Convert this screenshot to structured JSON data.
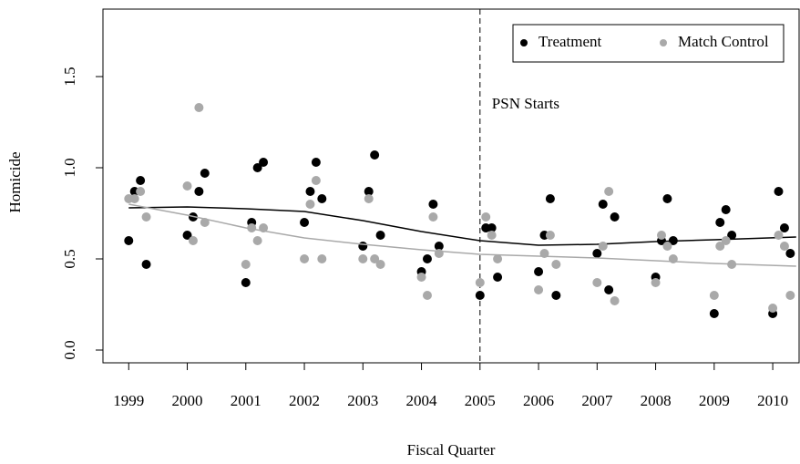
{
  "chart_data": {
    "type": "scatter",
    "x_label": "Fiscal Quarter",
    "y_label": "Homicide",
    "x": [
      1999,
      1999.1,
      1999.2,
      1999.3,
      2000,
      2000.1,
      2000.2,
      2000.3,
      2001,
      2001.1,
      2001.2,
      2001.3,
      2002,
      2002.1,
      2002.2,
      2002.3,
      2003,
      2003.1,
      2003.2,
      2003.3,
      2004,
      2004.1,
      2004.2,
      2004.3,
      2005,
      2005.1,
      2005.2,
      2005.3,
      2006,
      2006.1,
      2006.2,
      2006.3,
      2007,
      2007.1,
      2007.2,
      2007.3,
      2008,
      2008.1,
      2008.2,
      2008.3,
      2009,
      2009.1,
      2009.2,
      2009.3,
      2010,
      2010.1,
      2010.2,
      2010.3
    ],
    "series": [
      {
        "name": "Treatment",
        "color": "#000000",
        "values": [
          0.6,
          0.87,
          0.93,
          0.47,
          0.63,
          0.73,
          0.87,
          0.97,
          0.37,
          0.7,
          1.0,
          1.03,
          0.7,
          0.87,
          1.03,
          0.83,
          0.57,
          0.87,
          1.07,
          0.63,
          0.43,
          0.5,
          0.8,
          0.57,
          0.3,
          0.67,
          0.67,
          0.4,
          0.43,
          0.63,
          0.83,
          0.3,
          0.53,
          0.8,
          0.33,
          0.73,
          0.4,
          0.6,
          0.83,
          0.6,
          0.2,
          0.7,
          0.77,
          0.63,
          0.2,
          0.87,
          0.67,
          0.53
        ],
        "trend": [
          0.78,
          0.785,
          0.775,
          0.76,
          0.71,
          0.65,
          0.6,
          0.575,
          0.58,
          0.595,
          0.605,
          0.62
        ]
      },
      {
        "name": "Match Control",
        "color": "#a9a9a9",
        "values": [
          0.83,
          0.83,
          0.87,
          0.73,
          0.9,
          0.6,
          1.33,
          0.7,
          0.47,
          0.67,
          0.6,
          0.67,
          0.5,
          0.8,
          0.93,
          0.5,
          0.5,
          0.83,
          0.5,
          0.47,
          0.4,
          0.3,
          0.73,
          0.53,
          0.37,
          0.73,
          0.63,
          0.5,
          0.33,
          0.53,
          0.63,
          0.47,
          0.37,
          0.57,
          0.87,
          0.27,
          0.37,
          0.63,
          0.57,
          0.5,
          0.3,
          0.57,
          0.6,
          0.47,
          0.23,
          0.63,
          0.57,
          0.3
        ],
        "trend": [
          0.8,
          0.74,
          0.67,
          0.615,
          0.58,
          0.55,
          0.525,
          0.515,
          0.505,
          0.49,
          0.475,
          0.46
        ]
      }
    ],
    "trend_x": [
      1999,
      2000,
      2001,
      2002,
      2003,
      2004,
      2005,
      2006,
      2007,
      2008,
      2009,
      2010.4
    ],
    "vline": {
      "x": 2005,
      "label": "PSN Starts"
    },
    "xlim": [
      1998.56,
      2010.45
    ],
    "ylim": [
      -0.07,
      1.87
    ],
    "xticks": [
      1999,
      2000,
      2001,
      2002,
      2003,
      2004,
      2005,
      2006,
      2007,
      2008,
      2009,
      2010
    ],
    "yticks": [
      {
        "value": 0,
        "label": "0.0"
      },
      0.5,
      {
        "value": 1,
        "label": "1.0"
      },
      1.5
    ],
    "legend": "top-right"
  }
}
